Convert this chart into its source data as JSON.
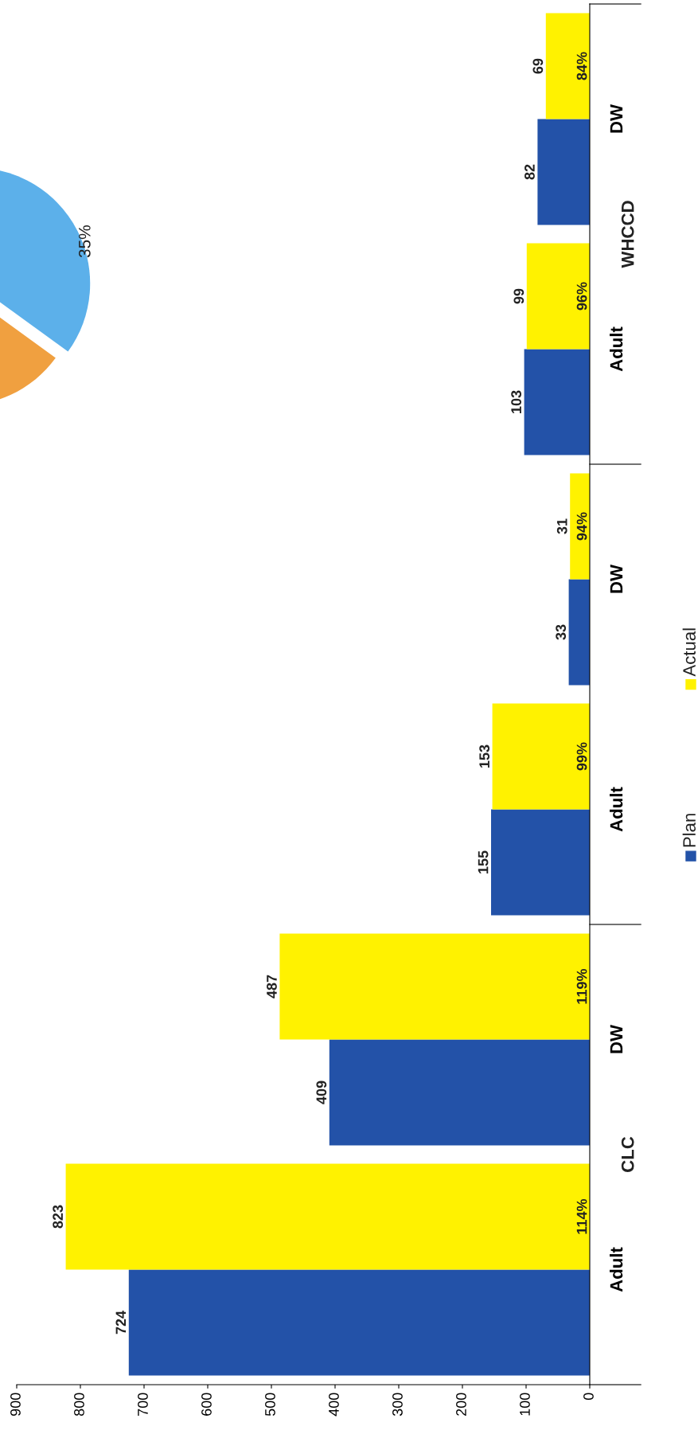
{
  "chart_data": [
    {
      "type": "bar",
      "orientation": "horizontal",
      "categories": [
        "DW",
        "Adult",
        "DW",
        "Adult",
        "DW",
        "Adult"
      ],
      "series": [
        {
          "name": "Plan",
          "color": "#2352a8",
          "values": [
            82,
            103,
            33,
            155,
            409,
            724
          ]
        },
        {
          "name": "Actual",
          "color": "#fff200",
          "values": [
            69,
            99,
            31,
            153,
            487,
            823
          ]
        }
      ],
      "xlim": [
        900,
        0
      ],
      "xticks": [
        900,
        800,
        700,
        600,
        500,
        400,
        300,
        200,
        100,
        0
      ],
      "data_labels": true,
      "grid": false,
      "legend": "right",
      "annotations": [
        "84%",
        "96%",
        "94%",
        "99%",
        "119%",
        "114%",
        "WHCCD",
        "CLC"
      ]
    },
    {
      "type": "pie",
      "categories": [
        null,
        null
      ],
      "values": [
        35,
        65
      ],
      "colors": [
        "#5cb0ea",
        "#f0a040"
      ],
      "value_labels": [
        "35%",
        null
      ]
    }
  ]
}
